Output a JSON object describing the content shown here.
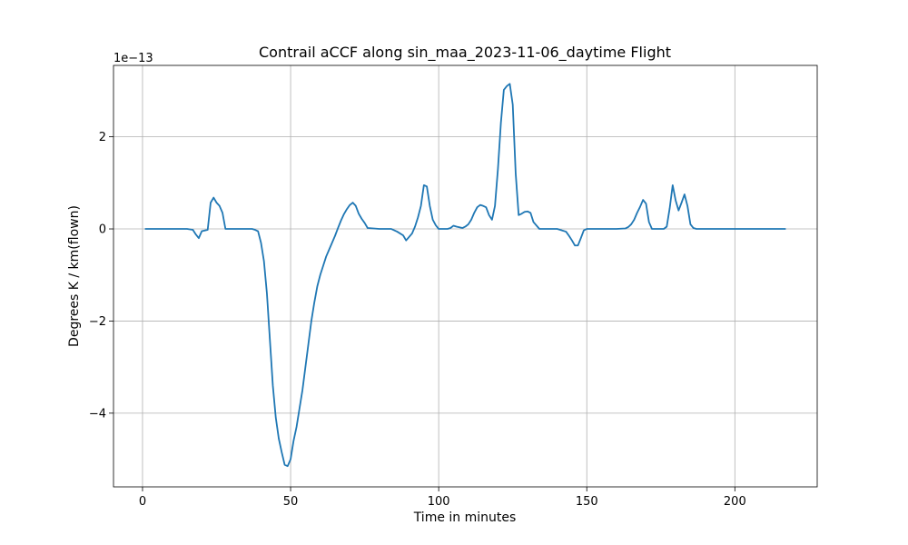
{
  "chart_data": {
    "type": "line",
    "title": "Contrail aCCF along sin_maa_2023-11-06_daytime Flight",
    "xlabel": "Time in minutes",
    "ylabel": "Degrees K / km(flown)",
    "y_offset_label": "1e−13",
    "xlim": [
      -9.8,
      227.8
    ],
    "ylim": [
      -5.6,
      3.55
    ],
    "x_ticks": [
      0,
      50,
      100,
      150,
      200
    ],
    "x_tick_labels": [
      "0",
      "50",
      "100",
      "150",
      "200"
    ],
    "y_ticks": [
      -4,
      -2,
      0,
      2
    ],
    "y_tick_labels": [
      "−4",
      "−2",
      "0",
      "2"
    ],
    "grid": true,
    "line_color": "#1f77b4",
    "series": [
      {
        "x": [
          1,
          5,
          10,
          15,
          17,
          18,
          19,
          20,
          22,
          23,
          24,
          25,
          26,
          27,
          28,
          30,
          35,
          37,
          38,
          39,
          40,
          41,
          42,
          43,
          44,
          45,
          46,
          47,
          48,
          49,
          50,
          51,
          52,
          53,
          54,
          55,
          56,
          57,
          58,
          59,
          60,
          61,
          62,
          63,
          64,
          65,
          66,
          67,
          68,
          69,
          70,
          71,
          72,
          73,
          74,
          75,
          76,
          80,
          84,
          86,
          88,
          89,
          91,
          92,
          93,
          94,
          95,
          96,
          97,
          98,
          99,
          100,
          101,
          103,
          104,
          105,
          106,
          108,
          109,
          110,
          111,
          112,
          113,
          114,
          115,
          116,
          117,
          118,
          119,
          120,
          121,
          122,
          123,
          124,
          125,
          126,
          127,
          128,
          129,
          130,
          131,
          132,
          134,
          137,
          140,
          141,
          143,
          144,
          145,
          146,
          147,
          148,
          149,
          150,
          151,
          155,
          160,
          163,
          164,
          165,
          166,
          167,
          168,
          169,
          170,
          171,
          172,
          174,
          176,
          177,
          178,
          179,
          180,
          181,
          182,
          183,
          184,
          185,
          186,
          187,
          190,
          200,
          210,
          217
        ],
        "y": [
          0,
          0,
          0,
          0,
          -0.02,
          -0.12,
          -0.2,
          -0.05,
          -0.02,
          0.57,
          0.68,
          0.57,
          0.5,
          0.35,
          0,
          0,
          0,
          0,
          -0.02,
          -0.05,
          -0.3,
          -0.7,
          -1.4,
          -2.4,
          -3.4,
          -4.1,
          -4.55,
          -4.85,
          -5.12,
          -5.15,
          -5.0,
          -4.6,
          -4.3,
          -3.9,
          -3.5,
          -3.0,
          -2.5,
          -2.0,
          -1.6,
          -1.25,
          -1.0,
          -0.8,
          -0.6,
          -0.45,
          -0.3,
          -0.15,
          0.02,
          0.18,
          0.32,
          0.43,
          0.52,
          0.57,
          0.5,
          0.33,
          0.22,
          0.13,
          0.02,
          0,
          0,
          -0.06,
          -0.14,
          -0.25,
          -0.1,
          0.05,
          0.25,
          0.5,
          0.95,
          0.92,
          0.5,
          0.2,
          0.08,
          0.0,
          0,
          0,
          0.02,
          0.07,
          0.05,
          0.02,
          0.05,
          0.1,
          0.2,
          0.35,
          0.47,
          0.52,
          0.5,
          0.47,
          0.3,
          0.2,
          0.5,
          1.3,
          2.3,
          3.02,
          3.1,
          3.15,
          2.7,
          1.2,
          0.3,
          0.33,
          0.37,
          0.38,
          0.35,
          0.15,
          0.0,
          0,
          0,
          -0.02,
          -0.06,
          -0.15,
          -0.25,
          -0.36,
          -0.36,
          -0.2,
          -0.03,
          0,
          0,
          0,
          0,
          0.01,
          0.04,
          0.1,
          0.2,
          0.35,
          0.48,
          0.63,
          0.55,
          0.15,
          0.0,
          0,
          0,
          0.05,
          0.45,
          0.95,
          0.62,
          0.4,
          0.57,
          0.75,
          0.5,
          0.1,
          0.02,
          0,
          0,
          0,
          0,
          0
        ]
      }
    ]
  }
}
